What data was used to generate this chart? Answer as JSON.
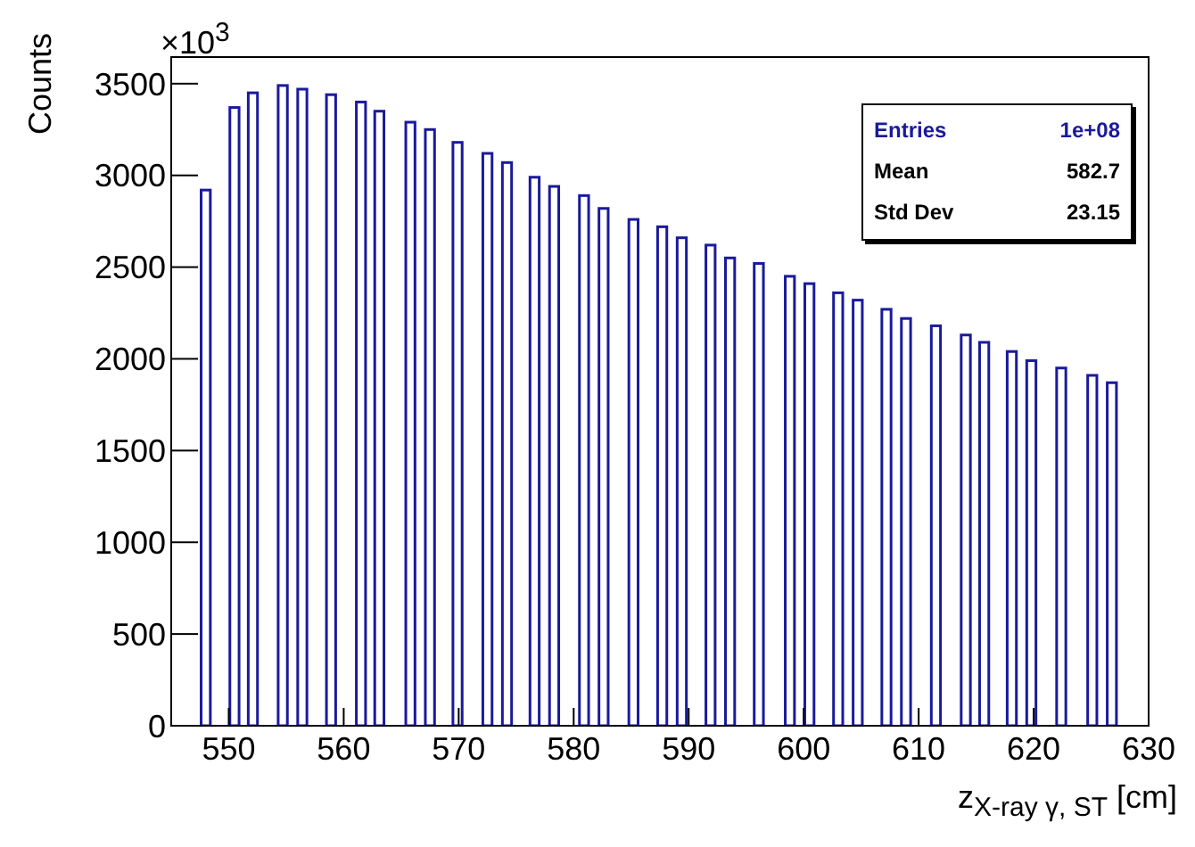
{
  "chart_data": {
    "type": "histogram",
    "ylabel": "Counts",
    "xlabel": "z$_{X-ray γ, ST}$ [cm]",
    "annotations": [
      "×10$^{3}$",
      "Entries",
      "1e+08",
      "Mean",
      "582.7",
      "Std Dev",
      "23.15"
    ],
    "color": "#1a1a9c",
    "bins": [
      547.6,
      548.4,
      550.1,
      550.9,
      551.7,
      552.5,
      554.3,
      555.1,
      556.0,
      556.8,
      558.5,
      559.3,
      561.1,
      561.9,
      562.7,
      563.5,
      565.4,
      566.2,
      567.1,
      567.9,
      569.5,
      570.3,
      572.1,
      572.9,
      573.8,
      574.6,
      576.2,
      577.0,
      577.9,
      578.7,
      580.5,
      581.3,
      582.2,
      583.0,
      584.8,
      585.6,
      587.3,
      588.1,
      589.0,
      589.8,
      591.5,
      592.3,
      593.2,
      594.0,
      595.7,
      596.5,
      598.4,
      599.2,
      600.1,
      600.9,
      602.6,
      603.4,
      604.3,
      605.1,
      606.8,
      607.6,
      608.5,
      609.3,
      611.1,
      611.9,
      613.7,
      614.5,
      615.3,
      616.1,
      617.7,
      618.5,
      619.4,
      620.2,
      622.0,
      622.8,
      624.7,
      625.5,
      626.4,
      627.2
    ],
    "values": [
      2920,
      0,
      3370,
      0,
      3450,
      0,
      3490,
      0,
      3470,
      0,
      3440,
      0,
      3400,
      0,
      3350,
      0,
      3290,
      0,
      3250,
      0,
      3180,
      0,
      3120,
      0,
      3070,
      0,
      2990,
      0,
      2940,
      0,
      2890,
      0,
      2820,
      0,
      2760,
      0,
      2720,
      0,
      2660,
      0,
      2620,
      0,
      2550,
      0,
      2520,
      0,
      2450,
      0,
      2410,
      0,
      2360,
      0,
      2320,
      0,
      2270,
      0,
      2220,
      0,
      2180,
      0,
      2130,
      0,
      2090,
      0,
      2040,
      0,
      1990,
      0,
      1950,
      0,
      1910,
      0,
      1870
    ],
    "xlim": [
      545,
      630
    ],
    "xticks": [
      550,
      560,
      570,
      580,
      590,
      600,
      610,
      620,
      630
    ],
    "ylim": [
      0,
      3645
    ],
    "yticks": [
      0,
      500,
      1000,
      1500,
      2000,
      2500,
      3000,
      3500
    ],
    "grid": false
  }
}
